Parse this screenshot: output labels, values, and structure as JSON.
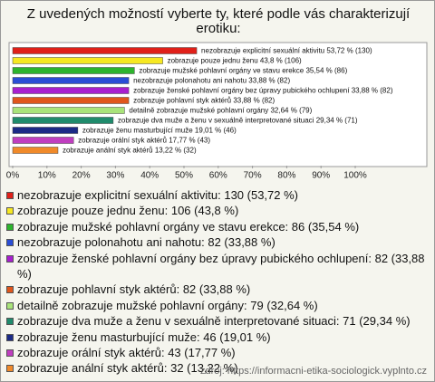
{
  "chart_data": {
    "type": "bar",
    "orientation": "horizontal",
    "title": "Z uvedených možností vyberte ty, které podle vás charakterizují erotiku:",
    "categories": [
      "nezobrazuje explicitní sexuální aktivitu",
      "zobrazuje pouze jednu ženu",
      "zobrazuje mužské pohlavní orgány ve stavu erekce",
      "nezobrazuje polonahotu ani nahotu",
      "zobrazuje ženské pohlavní orgány bez úpravy pubického ochlupení",
      "zobrazuje pohlavní styk aktérů",
      "detailně zobrazuje mužské pohlavní orgány",
      "zobrazuje dva muže a ženu v sexuálně interpretované situaci",
      "zobrazuje ženu masturbující muže",
      "zobrazuje orální styk aktérů",
      "zobrazuje anální styk aktérů"
    ],
    "values": [
      53.72,
      43.8,
      35.54,
      33.88,
      33.88,
      33.88,
      32.64,
      29.34,
      19.01,
      17.77,
      13.22
    ],
    "value_labels": [
      "53,72 % (130)",
      "43,8 % (106)",
      "35,54 % (86)",
      "33,88 % (82)",
      "33,88 % (82)",
      "33,88 % (82)",
      "32,64 % (79)",
      "29,34 % (71)",
      "19,01 % (46)",
      "17,77 % (43)",
      "13,22 % (32)"
    ],
    "legend": [
      "nezobrazuje explicitní sexuální aktivitu: 130 (53,72 %)",
      "zobrazuje pouze jednu ženu: 106 (43,8 %)",
      "zobrazuje mužské pohlavní orgány ve stavu erekce: 86 (35,54 %)",
      "nezobrazuje polonahotu ani nahotu: 82 (33,88 %)",
      "zobrazuje ženské pohlavní orgány bez úpravy pubického ochlupení: 82 (33,88 %)",
      "zobrazuje pohlavní styk aktérů: 82 (33,88 %)",
      "detailně zobrazuje mužské pohlavní orgány: 79 (32,64 %)",
      "zobrazuje dva muže a ženu v sexuálně interpretované situaci: 71 (29,34 %)",
      "zobrazuje ženu masturbující muže: 46 (19,01 %)",
      "zobrazuje orální styk aktérů: 43 (17,77 %)",
      "zobrazuje anální styk aktérů: 32 (13,22 %)"
    ],
    "colors": [
      "#e02019",
      "#f6e822",
      "#2db42d",
      "#2a4ed6",
      "#a81fcf",
      "#e0561c",
      "#a9e37a",
      "#1f8b6c",
      "#1b2a86",
      "#c03ec0",
      "#f08a2a"
    ],
    "xlim": [
      0,
      100
    ],
    "xticks": [
      {
        "value": 0,
        "label": "0%"
      },
      {
        "value": 10,
        "label": "10%"
      },
      {
        "value": 20,
        "label": "20%"
      },
      {
        "value": 30,
        "label": "30%"
      },
      {
        "value": 40,
        "label": "40%"
      },
      {
        "value": 50,
        "label": "50%"
      },
      {
        "value": 60,
        "label": "60%"
      },
      {
        "value": 70,
        "label": "70%"
      },
      {
        "value": 80,
        "label": "80%"
      },
      {
        "value": 90,
        "label": "90%"
      },
      {
        "value": 100,
        "label": "100%"
      }
    ],
    "grid": false,
    "source": "zdroj: https://informacni-etika-sociologick.vyplnto.cz"
  }
}
